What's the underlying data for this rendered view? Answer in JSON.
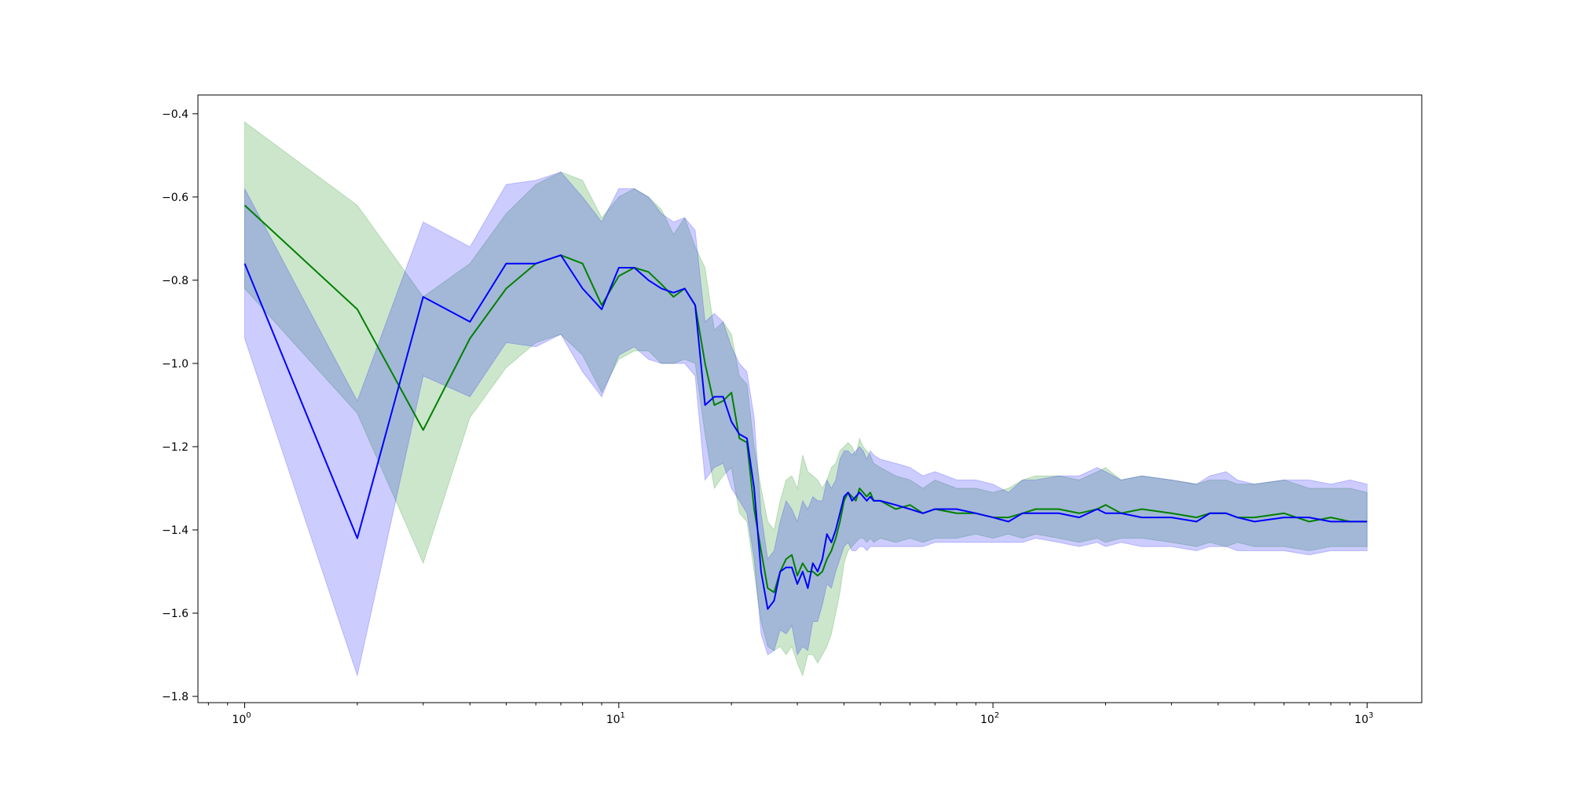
{
  "chart_data": {
    "type": "line",
    "title": "",
    "xlabel": "",
    "ylabel": "",
    "xscale": "log",
    "xlim": [
      0.75,
      1400
    ],
    "ylim": [
      -1.815,
      -0.355
    ],
    "grid": false,
    "legend": "none",
    "x_ticks": [
      {
        "value": 1,
        "base": "10",
        "exp": "0"
      },
      {
        "value": 10,
        "base": "10",
        "exp": "1"
      },
      {
        "value": 100,
        "base": "10",
        "exp": "2"
      },
      {
        "value": 1000,
        "base": "10",
        "exp": "3"
      }
    ],
    "y_ticks": [
      {
        "value": -0.4,
        "label": "−0.4"
      },
      {
        "value": -0.6,
        "label": "−0.6"
      },
      {
        "value": -0.8,
        "label": "−0.8"
      },
      {
        "value": -1.0,
        "label": "−1.0"
      },
      {
        "value": -1.2,
        "label": "−1.2"
      },
      {
        "value": -1.4,
        "label": "−1.4"
      },
      {
        "value": -1.6,
        "label": "−1.6"
      },
      {
        "value": -1.8,
        "label": "−1.8"
      }
    ],
    "series": [
      {
        "color": "#008000",
        "band_color": "#008000",
        "band_opacity": 0.2,
        "x": [
          1,
          2,
          3,
          4,
          5,
          6,
          7,
          8,
          9,
          10,
          11,
          12,
          13,
          14,
          15,
          16,
          17,
          18,
          19,
          20,
          21,
          22,
          23,
          24,
          25,
          26,
          27,
          28,
          29,
          30,
          31,
          32,
          33,
          34,
          35,
          36,
          37,
          38,
          39,
          40,
          41,
          42,
          43,
          44,
          45,
          46,
          47,
          48,
          50,
          55,
          60,
          65,
          70,
          80,
          90,
          100,
          110,
          120,
          130,
          150,
          170,
          190,
          200,
          220,
          250,
          300,
          350,
          380,
          420,
          450,
          500,
          600,
          700,
          800,
          900,
          1000
        ],
        "y": [
          -0.62,
          -0.87,
          -1.16,
          -0.94,
          -0.82,
          -0.76,
          -0.74,
          -0.76,
          -0.86,
          -0.79,
          -0.77,
          -0.78,
          -0.81,
          -0.84,
          -0.82,
          -0.86,
          -1.0,
          -1.1,
          -1.09,
          -1.07,
          -1.18,
          -1.19,
          -1.35,
          -1.45,
          -1.54,
          -1.55,
          -1.5,
          -1.47,
          -1.46,
          -1.51,
          -1.48,
          -1.5,
          -1.5,
          -1.51,
          -1.5,
          -1.47,
          -1.45,
          -1.42,
          -1.38,
          -1.33,
          -1.31,
          -1.32,
          -1.33,
          -1.3,
          -1.31,
          -1.32,
          -1.31,
          -1.33,
          -1.33,
          -1.35,
          -1.34,
          -1.36,
          -1.35,
          -1.36,
          -1.36,
          -1.37,
          -1.37,
          -1.36,
          -1.35,
          -1.35,
          -1.36,
          -1.35,
          -1.34,
          -1.36,
          -1.35,
          -1.36,
          -1.37,
          -1.36,
          -1.36,
          -1.37,
          -1.37,
          -1.36,
          -1.38,
          -1.37,
          -1.38,
          -1.38
        ],
        "lower": [
          -0.82,
          -1.12,
          -1.48,
          -1.13,
          -1.01,
          -0.95,
          -0.93,
          -0.98,
          -1.07,
          -0.99,
          -0.97,
          -0.97,
          -1.0,
          -1.0,
          -0.99,
          -1.0,
          -1.17,
          -1.3,
          -1.27,
          -1.25,
          -1.36,
          -1.38,
          -1.5,
          -1.62,
          -1.68,
          -1.69,
          -1.68,
          -1.7,
          -1.68,
          -1.72,
          -1.75,
          -1.7,
          -1.7,
          -1.72,
          -1.7,
          -1.68,
          -1.65,
          -1.6,
          -1.55,
          -1.48,
          -1.45,
          -1.44,
          -1.43,
          -1.42,
          -1.42,
          -1.43,
          -1.42,
          -1.43,
          -1.42,
          -1.43,
          -1.42,
          -1.43,
          -1.42,
          -1.42,
          -1.41,
          -1.42,
          -1.41,
          -1.42,
          -1.41,
          -1.42,
          -1.43,
          -1.42,
          -1.43,
          -1.42,
          -1.42,
          -1.43,
          -1.44,
          -1.43,
          -1.44,
          -1.43,
          -1.44,
          -1.44,
          -1.45,
          -1.44,
          -1.44,
          -1.44
        ],
        "upper": [
          -0.42,
          -0.62,
          -0.84,
          -0.76,
          -0.64,
          -0.57,
          -0.54,
          -0.56,
          -0.65,
          -0.6,
          -0.58,
          -0.6,
          -0.63,
          -0.69,
          -0.65,
          -0.72,
          -0.77,
          -0.92,
          -0.9,
          -0.93,
          -1.03,
          -1.05,
          -1.2,
          -1.3,
          -1.38,
          -1.4,
          -1.33,
          -1.28,
          -1.27,
          -1.3,
          -1.22,
          -1.26,
          -1.27,
          -1.28,
          -1.3,
          -1.28,
          -1.25,
          -1.24,
          -1.21,
          -1.2,
          -1.19,
          -1.2,
          -1.22,
          -1.18,
          -1.2,
          -1.21,
          -1.22,
          -1.24,
          -1.25,
          -1.27,
          -1.28,
          -1.3,
          -1.28,
          -1.3,
          -1.3,
          -1.31,
          -1.3,
          -1.28,
          -1.27,
          -1.27,
          -1.28,
          -1.26,
          -1.25,
          -1.28,
          -1.27,
          -1.28,
          -1.29,
          -1.28,
          -1.28,
          -1.29,
          -1.29,
          -1.28,
          -1.3,
          -1.3,
          -1.3,
          -1.31
        ]
      },
      {
        "color": "#0000ff",
        "band_color": "#0000ff",
        "band_opacity": 0.2,
        "x": [
          1,
          2,
          3,
          4,
          5,
          6,
          7,
          8,
          9,
          10,
          11,
          12,
          13,
          14,
          15,
          16,
          17,
          18,
          19,
          20,
          21,
          22,
          23,
          24,
          25,
          26,
          27,
          28,
          29,
          30,
          31,
          32,
          33,
          34,
          35,
          36,
          37,
          38,
          39,
          40,
          41,
          42,
          43,
          44,
          45,
          46,
          47,
          48,
          50,
          55,
          60,
          65,
          70,
          80,
          90,
          100,
          110,
          120,
          130,
          150,
          170,
          190,
          200,
          220,
          250,
          300,
          350,
          380,
          420,
          450,
          500,
          600,
          700,
          800,
          900,
          1000
        ],
        "y": [
          -0.76,
          -1.42,
          -0.84,
          -0.9,
          -0.76,
          -0.76,
          -0.74,
          -0.82,
          -0.87,
          -0.77,
          -0.77,
          -0.8,
          -0.82,
          -0.83,
          -0.82,
          -0.86,
          -1.1,
          -1.08,
          -1.08,
          -1.14,
          -1.17,
          -1.18,
          -1.3,
          -1.5,
          -1.59,
          -1.57,
          -1.5,
          -1.49,
          -1.49,
          -1.53,
          -1.5,
          -1.54,
          -1.48,
          -1.5,
          -1.47,
          -1.41,
          -1.43,
          -1.4,
          -1.36,
          -1.32,
          -1.31,
          -1.33,
          -1.32,
          -1.31,
          -1.32,
          -1.33,
          -1.32,
          -1.33,
          -1.33,
          -1.34,
          -1.35,
          -1.36,
          -1.35,
          -1.35,
          -1.36,
          -1.37,
          -1.38,
          -1.36,
          -1.36,
          -1.36,
          -1.37,
          -1.35,
          -1.36,
          -1.36,
          -1.37,
          -1.37,
          -1.38,
          -1.36,
          -1.36,
          -1.37,
          -1.38,
          -1.37,
          -1.37,
          -1.38,
          -1.38,
          -1.38
        ],
        "lower": [
          -0.94,
          -1.75,
          -1.03,
          -1.08,
          -0.95,
          -0.96,
          -0.93,
          -1.02,
          -1.08,
          -0.98,
          -0.96,
          -0.99,
          -1.0,
          -1.0,
          -1.0,
          -1.03,
          -1.28,
          -1.25,
          -1.24,
          -1.3,
          -1.33,
          -1.36,
          -1.47,
          -1.65,
          -1.7,
          -1.69,
          -1.64,
          -1.65,
          -1.63,
          -1.7,
          -1.68,
          -1.69,
          -1.62,
          -1.62,
          -1.58,
          -1.53,
          -1.54,
          -1.5,
          -1.47,
          -1.44,
          -1.43,
          -1.45,
          -1.45,
          -1.44,
          -1.44,
          -1.45,
          -1.44,
          -1.44,
          -1.44,
          -1.44,
          -1.44,
          -1.44,
          -1.43,
          -1.43,
          -1.43,
          -1.43,
          -1.43,
          -1.43,
          -1.42,
          -1.43,
          -1.44,
          -1.43,
          -1.44,
          -1.43,
          -1.44,
          -1.44,
          -1.45,
          -1.44,
          -1.44,
          -1.45,
          -1.45,
          -1.45,
          -1.46,
          -1.45,
          -1.45,
          -1.45
        ],
        "upper": [
          -0.58,
          -1.09,
          -0.66,
          -0.72,
          -0.57,
          -0.56,
          -0.54,
          -0.6,
          -0.66,
          -0.58,
          -0.58,
          -0.6,
          -0.64,
          -0.66,
          -0.65,
          -0.68,
          -0.9,
          -0.88,
          -0.9,
          -0.96,
          -1.0,
          -1.02,
          -1.13,
          -1.36,
          -1.47,
          -1.45,
          -1.38,
          -1.33,
          -1.35,
          -1.38,
          -1.33,
          -1.35,
          -1.32,
          -1.33,
          -1.33,
          -1.28,
          -1.3,
          -1.28,
          -1.23,
          -1.21,
          -1.21,
          -1.22,
          -1.21,
          -1.2,
          -1.21,
          -1.23,
          -1.21,
          -1.22,
          -1.23,
          -1.24,
          -1.25,
          -1.27,
          -1.26,
          -1.28,
          -1.28,
          -1.29,
          -1.31,
          -1.28,
          -1.28,
          -1.27,
          -1.27,
          -1.25,
          -1.26,
          -1.28,
          -1.27,
          -1.28,
          -1.29,
          -1.27,
          -1.26,
          -1.28,
          -1.29,
          -1.28,
          -1.28,
          -1.29,
          -1.28,
          -1.29
        ]
      }
    ]
  }
}
